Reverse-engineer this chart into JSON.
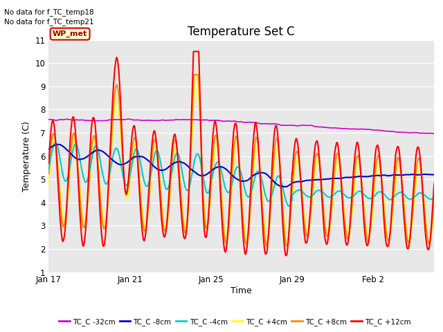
{
  "title": "Temperature Set C",
  "xlabel": "Time",
  "ylabel": "Temperature (C)",
  "ylim": [
    1.0,
    11.0
  ],
  "yticks": [
    1.0,
    2.0,
    3.0,
    4.0,
    5.0,
    6.0,
    7.0,
    8.0,
    9.0,
    10.0,
    11.0
  ],
  "bg_color": "#e8e8e8",
  "fig_color": "#ffffff",
  "no_data_text": [
    "No data for f_TC_temp18",
    "No data for f_TC_temp21"
  ],
  "wp_met_label": "WP_met",
  "wp_met_bg": "#ffffcc",
  "wp_met_border": "#cc0000",
  "wp_met_text_color": "#990000",
  "xtick_labels": [
    "Jan 17",
    "Jan 21",
    "Jan 25",
    "Jan 29",
    "Feb 2"
  ],
  "xtick_positions": [
    0,
    4,
    8,
    12,
    16
  ],
  "xlim": [
    0,
    19
  ],
  "series_colors": {
    "TC_C_-32cm": "#cc00cc",
    "TC_C_-8cm": "#0000cc",
    "TC_C_-4cm": "#00cccc",
    "TC_C_+4cm": "#ffff00",
    "TC_C_+8cm": "#ff8800",
    "TC_C_+12cm": "#ff0000"
  },
  "legend_labels": [
    "TC_C -32cm",
    "TC_C -8cm",
    "TC_C -4cm",
    "TC_C +4cm",
    "TC_C +8cm",
    "TC_C +12cm"
  ],
  "legend_colors": [
    "#cc00cc",
    "#0000cc",
    "#00cccc",
    "#ffff00",
    "#ff8800",
    "#ff0000"
  ]
}
